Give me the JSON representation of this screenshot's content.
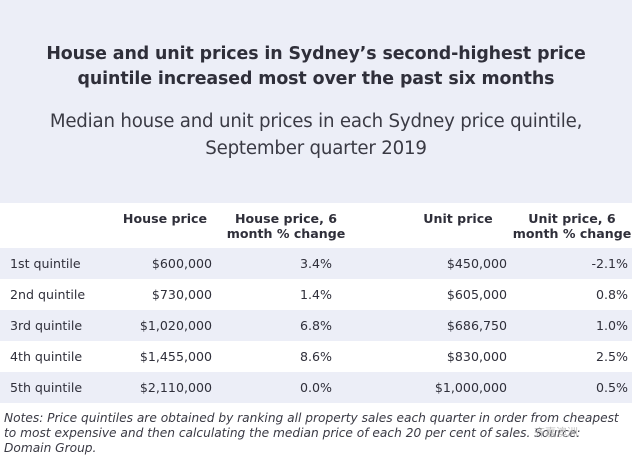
{
  "title": "House and unit prices in Sydney’s second-highest price quintile increased most over the past six months",
  "subtitle": "Median house and unit prices in each Sydney price quintile, September quarter 2019",
  "table": {
    "headers": {
      "house_price": "House price",
      "house_change_line1": "House price, 6",
      "house_change_line2": "month % change",
      "unit_price": "Unit price",
      "unit_change_line1": "Unit price, 6",
      "unit_change_line2": "month % change"
    },
    "rows": [
      {
        "quintile": "1st quintile",
        "house_price": "$600,000",
        "house_change": "3.4%",
        "unit_price": "$450,000",
        "unit_change": "-2.1%"
      },
      {
        "quintile": "2nd quintile",
        "house_price": "$730,000",
        "house_change": "1.4%",
        "unit_price": "$605,000",
        "unit_change": "0.8%"
      },
      {
        "quintile": "3rd quintile",
        "house_price": "$1,020,000",
        "house_change": "6.8%",
        "unit_price": "$686,750",
        "unit_change": "1.0%"
      },
      {
        "quintile": "4th quintile",
        "house_price": "$1,455,000",
        "house_change": "8.6%",
        "unit_price": "$830,000",
        "unit_change": "2.5%"
      },
      {
        "quintile": "5th quintile",
        "house_price": "$2,110,000",
        "house_change": "0.0%",
        "unit_price": "$1,000,000",
        "unit_change": "0.5%"
      }
    ]
  },
  "notes": "Notes: Price quintiles are obtained by ranking all property sales each quarter in order from cheapest to most expensive and then calculating the median price of each 20 per cent of sales. Source: Domain Group.",
  "watermark": "齐嘉澳洲",
  "colors": {
    "header_bg": "#eceef7",
    "row_shade": "#eceef7",
    "text": "#2f2f3a"
  }
}
